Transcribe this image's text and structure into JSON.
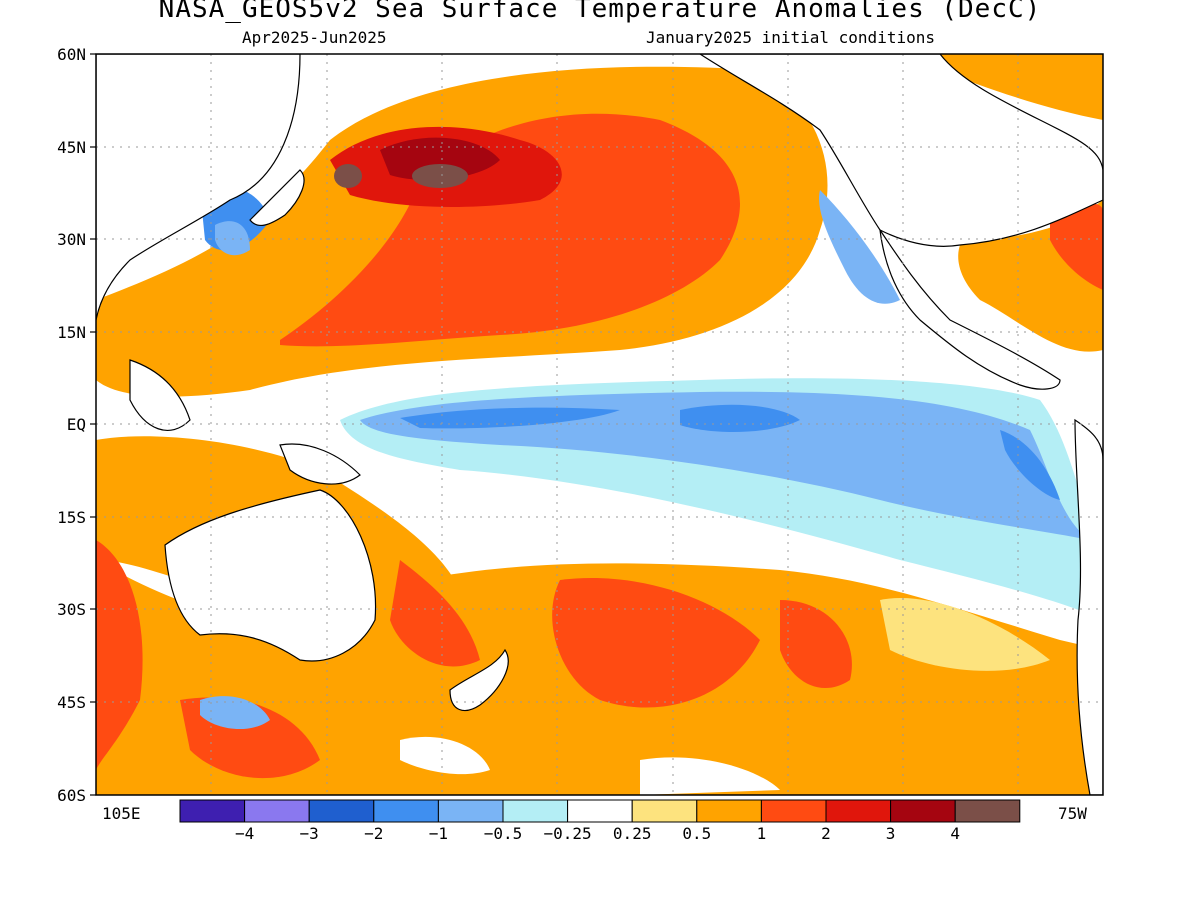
{
  "title": "NASA_GEOS5v2 Sea Surface Temperature Anomalies (DecC)",
  "subtitle_left": "Apr2025-Jun2025",
  "subtitle_right": "January2025 initial conditions",
  "lat_labels": [
    "60N",
    "45N",
    "30N",
    "15N",
    "EQ",
    "15S",
    "30S",
    "45S",
    "60S"
  ],
  "lon_labels": {
    "left": "105E",
    "right": "75W"
  },
  "colorbar": {
    "colors": [
      "#3e1fb0",
      "#8a78ef",
      "#1f5fcf",
      "#3f8ff0",
      "#7ab4f5",
      "#b4eef5",
      "#ffffff",
      "#fde37e",
      "#ffa300",
      "#ff4b12",
      "#e0160c",
      "#a50510",
      "#7b4f48"
    ],
    "labels": [
      "-4",
      "-3",
      "-2",
      "-1",
      "-0.5",
      "-0.25",
      "0.25",
      "0.5",
      "1",
      "2",
      "3",
      "4"
    ]
  },
  "colors": {
    "land_outline": "#000000",
    "land": "#ffffff",
    "grid": "#9a9a9a"
  }
}
